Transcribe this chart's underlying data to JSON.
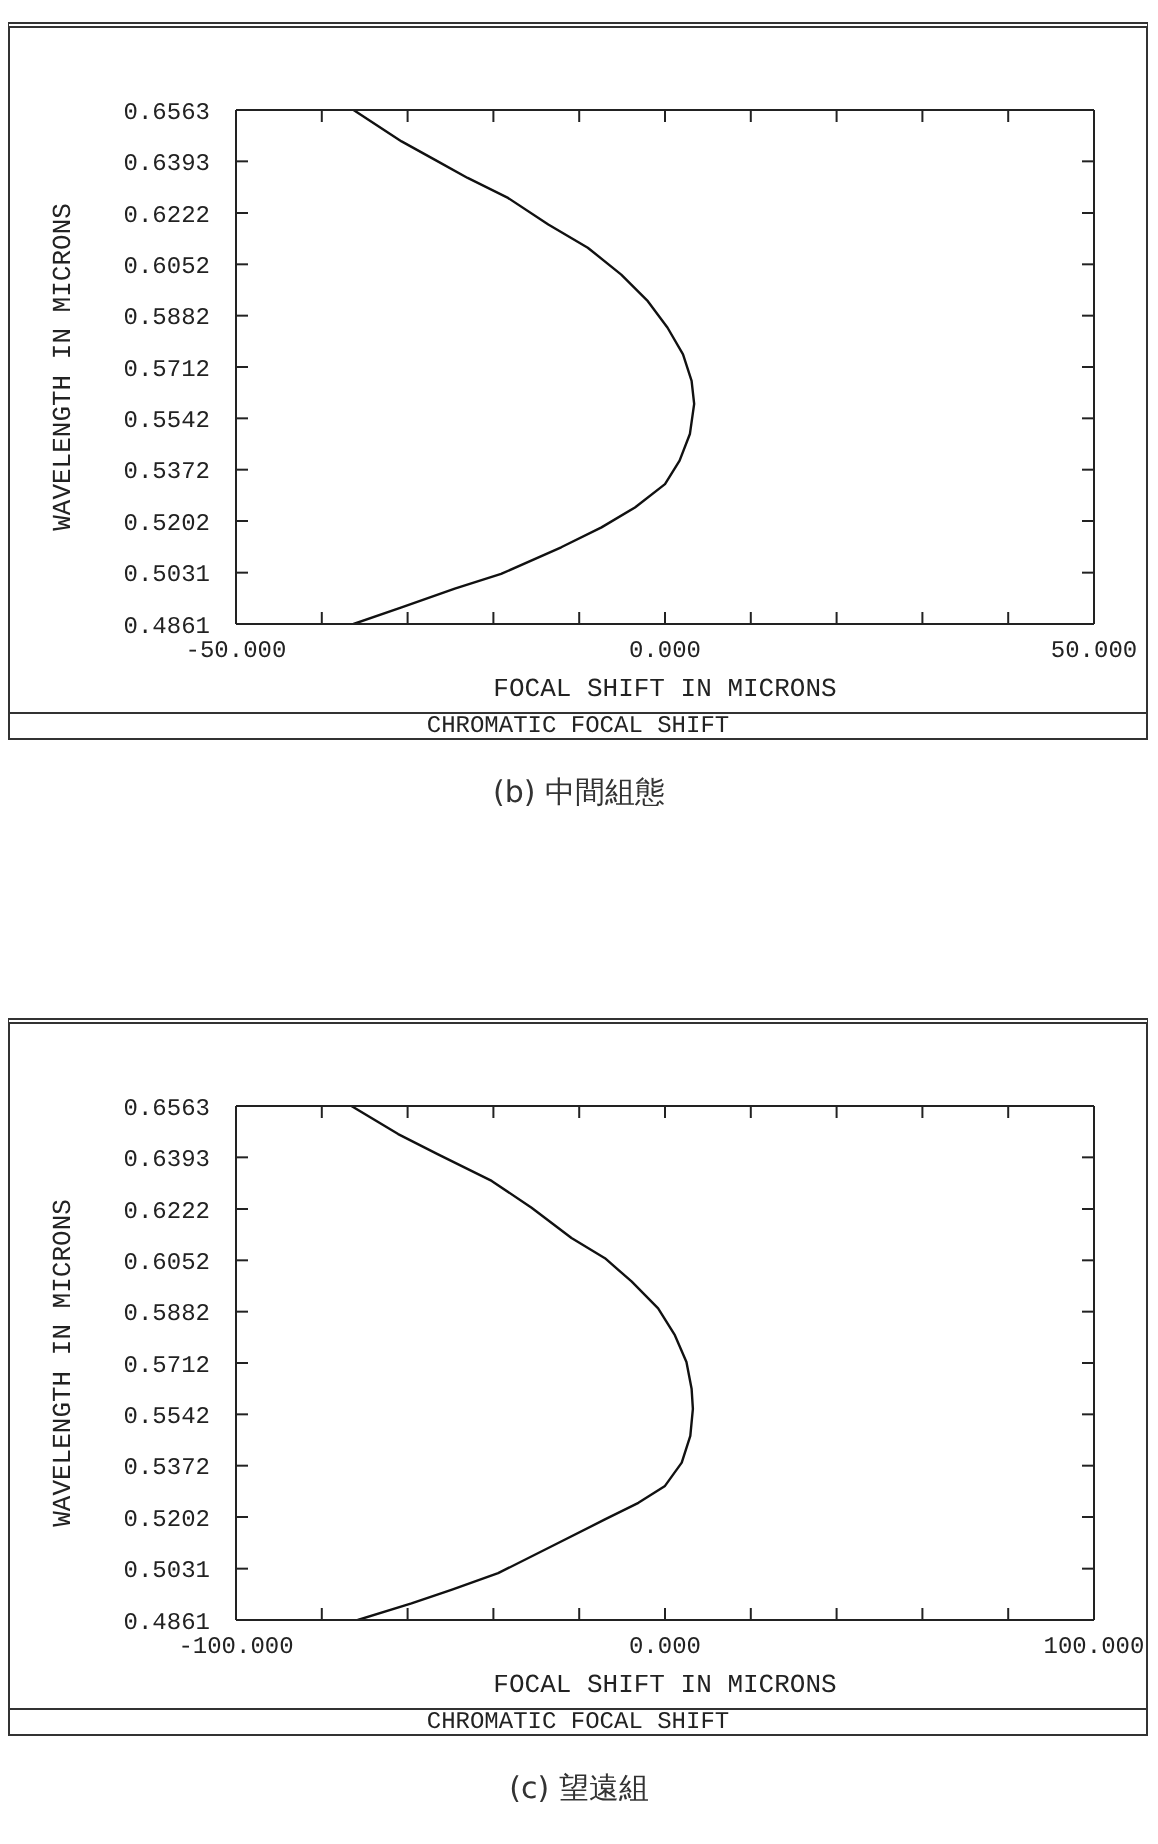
{
  "chart_data": [
    {
      "type": "line",
      "title": "CHROMATIC FOCAL SHIFT",
      "xlabel": "FOCAL SHIFT IN MICRONS",
      "ylabel": "WAVELENGTH IN MICRONS",
      "annotations": [
        "(b) 中間組態"
      ],
      "series": [
        {
          "color": "#111111",
          "x": [
            -36.3,
            -30.7,
            -26.8,
            -23.0,
            -18.3,
            -13.6,
            -9.0,
            -5.1,
            -2.0,
            0.3,
            2.1,
            3.1,
            3.4,
            2.9,
            1.7,
            0.0,
            -3.5,
            -7.4,
            -12.1,
            -19.1,
            -24.5,
            -30.7,
            -36.3
          ],
          "values": [
            0.6563,
            0.6459,
            0.6398,
            0.6338,
            0.6272,
            0.6184,
            0.6107,
            0.6018,
            0.593,
            0.5842,
            0.5754,
            0.5666,
            0.559,
            0.549,
            0.5402,
            0.5324,
            0.5247,
            0.5181,
            0.5115,
            0.5027,
            0.4978,
            0.4916,
            0.4861
          ]
        }
      ],
      "xlim": [
        -50,
        50
      ],
      "xticks": [
        {
          "value": -50,
          "label": "-50.000"
        },
        {
          "value": -40,
          "label": null
        },
        {
          "value": -30,
          "label": null
        },
        {
          "value": -20,
          "label": null
        },
        {
          "value": -10,
          "label": null
        },
        {
          "value": 0,
          "label": "0.000"
        },
        {
          "value": 10,
          "label": null
        },
        {
          "value": 20,
          "label": null
        },
        {
          "value": 30,
          "label": null
        },
        {
          "value": 40,
          "label": null
        },
        {
          "value": 50,
          "label": "50.000"
        }
      ],
      "ylim": [
        0.4861,
        0.6563
      ],
      "yticks": [
        0.4861,
        0.5031,
        0.5202,
        0.5372,
        0.5542,
        0.5712,
        0.5882,
        0.6052,
        0.6222,
        0.6393,
        0.6563
      ]
    },
    {
      "type": "line",
      "title": "CHROMATIC FOCAL SHIFT",
      "xlabel": "FOCAL SHIFT IN MICRONS",
      "ylabel": "WAVELENGTH IN MICRONS",
      "annotations": [
        "(c) 望遠組"
      ],
      "series": [
        {
          "color": "#111111",
          "x": [
            -73.1,
            -62.2,
            -52.9,
            -40.4,
            -31.1,
            -21.8,
            -14.0,
            -7.8,
            -1.6,
            2.3,
            5.0,
            6.2,
            6.5,
            5.9,
            3.9,
            0.0,
            -6.2,
            -14.0,
            -24.9,
            -38.9,
            -49.8,
            -59.1,
            -71.6
          ],
          "values": [
            0.6563,
            0.647,
            0.6403,
            0.6315,
            0.6226,
            0.6126,
            0.6059,
            0.5982,
            0.5893,
            0.5804,
            0.5715,
            0.5627,
            0.556,
            0.5471,
            0.5382,
            0.5305,
            0.5249,
            0.5194,
            0.5116,
            0.5016,
            0.4961,
            0.4916,
            0.4861
          ]
        }
      ],
      "xlim": [
        -100,
        100
      ],
      "xticks": [
        {
          "value": -100,
          "label": "-100.000"
        },
        {
          "value": -80,
          "label": null
        },
        {
          "value": -60,
          "label": null
        },
        {
          "value": -40,
          "label": null
        },
        {
          "value": -20,
          "label": null
        },
        {
          "value": 0,
          "label": "0.000"
        },
        {
          "value": 20,
          "label": null
        },
        {
          "value": 40,
          "label": null
        },
        {
          "value": 60,
          "label": null
        },
        {
          "value": 80,
          "label": null
        },
        {
          "value": 100,
          "label": "100.000"
        }
      ],
      "ylim": [
        0.4861,
        0.6563
      ],
      "yticks": [
        0.4861,
        0.5031,
        0.5202,
        0.5372,
        0.5542,
        0.5712,
        0.5882,
        0.6052,
        0.6222,
        0.6393,
        0.6563
      ]
    }
  ]
}
